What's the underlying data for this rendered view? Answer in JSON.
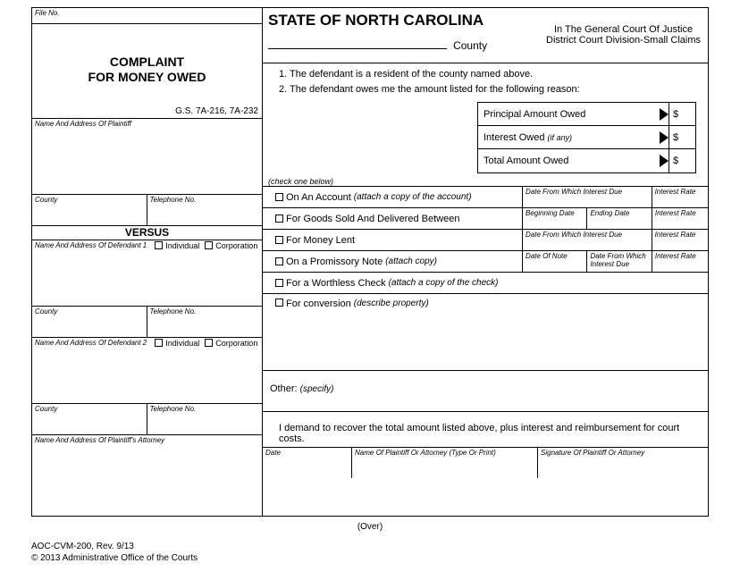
{
  "left": {
    "file_no": "File No.",
    "title_l1": "COMPLAINT",
    "title_l2": "FOR MONEY OWED",
    "gs": "G.S. 7A-216, 7A-232",
    "plaintiff_addr": "Name And Address Of Plaintiff",
    "county": "County",
    "telephone": "Telephone No.",
    "versus": "VERSUS",
    "def1": "Name And Address Of Defendant 1",
    "def2": "Name And Address Of Defendant 2",
    "individual": "Individual",
    "corporation": "Corporation",
    "atty": "Name And Address Of Plaintiff's Attorney"
  },
  "right": {
    "state": "STATE OF NORTH CAROLINA",
    "county_word": "County",
    "court_l1": "In The General Court Of Justice",
    "court_l2": "District Court Division-Small Claims",
    "stmt1": "1.  The defendant is a resident of the county named above.",
    "stmt2": "2.  The defendant owes me the amount listed for the following reason:",
    "amt1": "Principal Amount Owed",
    "amt2": "Interest Owed",
    "amt2_ital": "(if any)",
    "amt3": "Total Amount Owed",
    "dollar": "$",
    "check_one": "(check one below)",
    "r1": "On An Account",
    "r1_ital": "(attach a copy of the account)",
    "r2": "For Goods Sold And Delivered Between",
    "r3": "For Money Lent",
    "r4": "On a Promissory Note",
    "r4_ital": "(attach copy)",
    "r5": "For a Worthless Check",
    "r5_ital": "(attach a copy of the check)",
    "r6": "For conversion",
    "r6_ital": "(describe property)",
    "other": "Other:",
    "other_ital": "(specify)",
    "date_from": "Date From Which Interest Due",
    "int_rate": "Interest Rate",
    "beg_date": "Beginning Date",
    "end_date": "Ending Date",
    "date_note": "Date Of Note",
    "date_note_int": "Date From Which Interest Due",
    "demand": "I demand to recover the total amount listed above, plus interest and reimbursement for court costs.",
    "sig_date": "Date",
    "sig_name": "Name Of Plaintiff Or Attorney (Type Or Print)",
    "sig_sig": "Signature Of Plaintiff Or Attorney"
  },
  "footer": {
    "over": "(Over)",
    "id": "AOC-CVM-200, Rev. 9/13",
    "copy": "© 2013 Administrative Office of the Courts"
  }
}
